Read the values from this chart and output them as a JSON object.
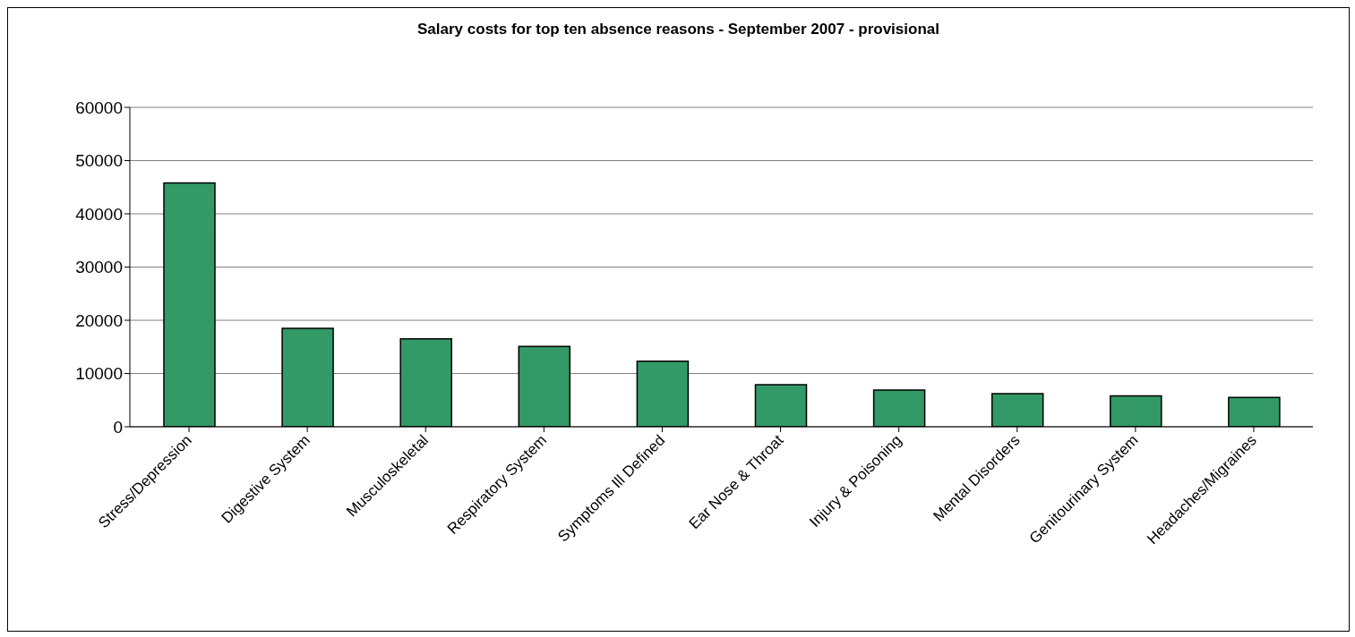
{
  "chart_data": {
    "type": "bar",
    "title": "Salary costs for top ten absence reasons - September 2007 - provisional",
    "categories": [
      "Stress/Depression",
      "Digestive System",
      "Musculoskeletal",
      "Respiratory System",
      "Symptoms Ill Defined",
      "Ear Nose & Throat",
      "Injury & Poisoning",
      "Mental Disorders",
      "Genitourinary System",
      "Headaches/Migraines"
    ],
    "values": [
      45800,
      18500,
      16500,
      15100,
      12300,
      7900,
      6900,
      6200,
      5800,
      5500
    ],
    "color": "#339966",
    "ylim": [
      0,
      60000
    ],
    "yticks": [
      0,
      10000,
      20000,
      30000,
      40000,
      50000,
      60000
    ],
    "grid": "y"
  }
}
